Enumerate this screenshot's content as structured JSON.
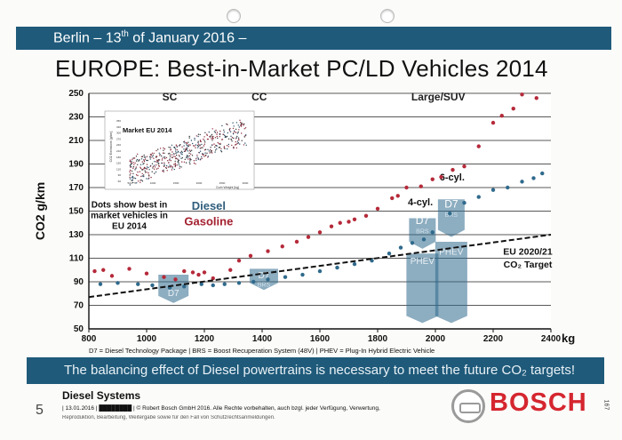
{
  "header": {
    "banner_prefix": "Berlin – 13",
    "banner_sup": "th",
    "banner_suffix": " of January 2016 –",
    "title": "EUROPE: Best-in-Market PC/LD Vehicles 2014"
  },
  "chart_data": {
    "type": "scatter",
    "title": "EUROPE: Best-in-Market PC/LD Vehicles 2014",
    "xlabel": "kg",
    "ylabel": "CO2 g/km",
    "xlim": [
      800,
      2400
    ],
    "ylim": [
      50,
      250
    ],
    "xticks": [
      800,
      1000,
      1200,
      1400,
      1600,
      1800,
      2000,
      2200,
      2400
    ],
    "yticks": [
      50,
      70,
      90,
      110,
      130,
      150,
      170,
      190,
      210,
      230,
      250
    ],
    "xtick_labels": [
      "800",
      "1000",
      "1200",
      "1400",
      "1600",
      "1800",
      "2000",
      "2200",
      "2400"
    ],
    "ytick_labels": [
      "50",
      "70",
      "90",
      "110",
      "130",
      "150",
      "170",
      "190",
      "210",
      "230",
      "250"
    ],
    "segments": [
      "SC",
      "CC",
      "Large/SUV"
    ],
    "legend": {
      "diesel": "Diesel",
      "gasoline": "Gasoline",
      "note": "Dots show best in market vehicles in EU 2014"
    },
    "series": [
      {
        "name": "Gasoline",
        "color": "#b52a3a",
        "points": [
          [
            820,
            99
          ],
          [
            850,
            100
          ],
          [
            880,
            95
          ],
          [
            940,
            101
          ],
          [
            1000,
            97
          ],
          [
            1060,
            94
          ],
          [
            1100,
            92
          ],
          [
            1130,
            99
          ],
          [
            1160,
            98
          ],
          [
            1180,
            96
          ],
          [
            1200,
            98
          ],
          [
            1230,
            93
          ],
          [
            1290,
            100
          ],
          [
            1320,
            108
          ],
          [
            1360,
            112
          ],
          [
            1420,
            116
          ],
          [
            1470,
            120
          ],
          [
            1520,
            124
          ],
          [
            1560,
            128
          ],
          [
            1600,
            132
          ],
          [
            1640,
            137
          ],
          [
            1670,
            140
          ],
          [
            1700,
            141
          ],
          [
            1720,
            143
          ],
          [
            1760,
            146
          ],
          [
            1800,
            152
          ],
          [
            1850,
            161
          ],
          [
            1870,
            163
          ],
          [
            1900,
            170
          ],
          [
            1950,
            171
          ],
          [
            1990,
            177
          ],
          [
            2020,
            179
          ],
          [
            2060,
            185
          ],
          [
            2100,
            188
          ],
          [
            2150,
            205
          ],
          [
            2200,
            225
          ],
          [
            2230,
            231
          ],
          [
            2270,
            237
          ],
          [
            2300,
            249
          ],
          [
            2350,
            246
          ]
        ]
      },
      {
        "name": "Diesel",
        "color": "#2f6a8c",
        "points": [
          [
            840,
            88
          ],
          [
            900,
            89
          ],
          [
            970,
            88
          ],
          [
            1020,
            87
          ],
          [
            1080,
            85
          ],
          [
            1130,
            86
          ],
          [
            1190,
            88
          ],
          [
            1230,
            87
          ],
          [
            1270,
            88
          ],
          [
            1320,
            89
          ],
          [
            1370,
            90
          ],
          [
            1420,
            92
          ],
          [
            1480,
            94
          ],
          [
            1540,
            96
          ],
          [
            1600,
            99
          ],
          [
            1660,
            102
          ],
          [
            1720,
            105
          ],
          [
            1780,
            108
          ],
          [
            1840,
            114
          ],
          [
            1880,
            119
          ],
          [
            1920,
            123
          ],
          [
            1960,
            126
          ],
          [
            1990,
            132
          ],
          [
            2050,
            148
          ],
          [
            2100,
            157
          ],
          [
            2150,
            162
          ],
          [
            2200,
            168
          ],
          [
            2250,
            170
          ],
          [
            2300,
            175
          ],
          [
            2340,
            178
          ],
          [
            2370,
            182
          ]
        ]
      }
    ],
    "target_line": {
      "label": "EU 2020/21 CO2 Target",
      "points": [
        [
          800,
          77
        ],
        [
          2400,
          130
        ]
      ]
    },
    "annotations": [
      "D7",
      "D7",
      "BRS",
      "D7",
      "BRS",
      "4-cyl.",
      "D7",
      "BRS",
      "6-cyl.",
      "PHEV",
      "PHEV"
    ],
    "inset": {
      "title": "Market EU 2014",
      "ylabel": "CO2 Emissions [g/km]",
      "xlabel": "Curb Weight [kg]",
      "xticks": [
        "500",
        "1000",
        "1500",
        "2000",
        "2500",
        "3000"
      ],
      "yticks": [
        "350",
        "330",
        "300",
        "270",
        "240",
        "210",
        "180",
        "150",
        "120",
        "90",
        "60"
      ]
    },
    "footnote": "D7 = Diesel Technology Package | BRS = Boost Recuperation System (48V) | PHEV = Plug-In Hybrid Electric Vehicle"
  },
  "bottom_banner": "The balancing effect of Diesel powertrains is necessary to meet the future CO₂ targets!",
  "footer": {
    "section": "Diesel Systems",
    "page_number": "5",
    "copyright": "| 13.01.2016 | ████████ | © Robert Bosch GmbH 2016. Alle Rechte vorbehalten, auch bzgl. jeder Verfügung, Verwertung,",
    "copyright_line2": "Reproduktion, Bearbeitung, Weitergabe sowie für den Fall von Schutzrechtsanmeldungen.",
    "brand": "BOSCH",
    "side_number": "167"
  }
}
